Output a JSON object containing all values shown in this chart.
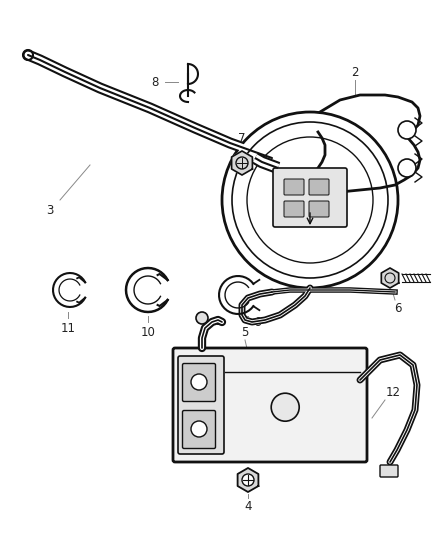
{
  "bg_color": "#ffffff",
  "line_color": "#111111",
  "label_color": "#222222",
  "figsize": [
    4.38,
    5.33
  ],
  "dpi": 100
}
